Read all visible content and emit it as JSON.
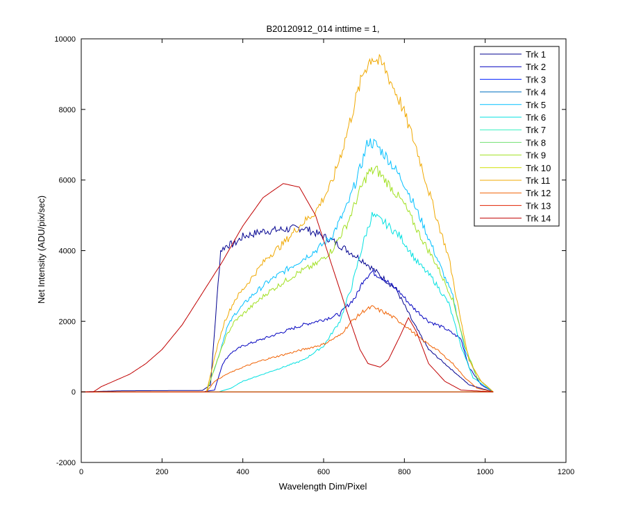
{
  "chart_data": {
    "type": "line",
    "title": "B20120912_014 inttime = 1,",
    "xlabel": "Wavelength Dim/Pixel",
    "ylabel": "Net Intensity (ADU/pix/sec)",
    "xlim": [
      0,
      1200
    ],
    "ylim": [
      -2000,
      10000
    ],
    "xticks": [
      0,
      200,
      400,
      600,
      800,
      1000,
      1200
    ],
    "yticks": [
      -2000,
      0,
      2000,
      4000,
      6000,
      8000,
      10000
    ],
    "grid": false,
    "legend_position": "top-right",
    "series": [
      {
        "name": "Trk 1",
        "color": "#00008f",
        "points": [
          [
            0,
            0
          ],
          [
            100,
            30
          ],
          [
            300,
            40
          ],
          [
            320,
            200
          ],
          [
            345,
            4000
          ],
          [
            360,
            4150
          ],
          [
            380,
            4200
          ],
          [
            400,
            4400
          ],
          [
            450,
            4550
          ],
          [
            500,
            4600
          ],
          [
            550,
            4650
          ],
          [
            580,
            4500
          ],
          [
            620,
            4300
          ],
          [
            660,
            4000
          ],
          [
            700,
            3700
          ],
          [
            740,
            3300
          ],
          [
            780,
            2900
          ],
          [
            820,
            2000
          ],
          [
            860,
            1200
          ],
          [
            900,
            800
          ],
          [
            940,
            400
          ],
          [
            960,
            200
          ],
          [
            990,
            100
          ],
          [
            1020,
            0
          ]
        ]
      },
      {
        "name": "Trk 2",
        "color": "#0000bf",
        "points": [
          [
            0,
            0
          ],
          [
            300,
            0
          ],
          [
            330,
            50
          ],
          [
            350,
            800
          ],
          [
            370,
            1100
          ],
          [
            400,
            1300
          ],
          [
            450,
            1500
          ],
          [
            500,
            1700
          ],
          [
            550,
            1900
          ],
          [
            600,
            2050
          ],
          [
            640,
            2200
          ],
          [
            680,
            2700
          ],
          [
            700,
            3200
          ],
          [
            720,
            3400
          ],
          [
            750,
            3200
          ],
          [
            790,
            2800
          ],
          [
            820,
            2400
          ],
          [
            860,
            2000
          ],
          [
            900,
            1800
          ],
          [
            940,
            1500
          ],
          [
            960,
            700
          ],
          [
            990,
            200
          ],
          [
            1020,
            0
          ]
        ]
      },
      {
        "name": "Trk 3",
        "color": "#0020ff",
        "points": [
          [
            0,
            0
          ],
          [
            1020,
            0
          ]
        ]
      },
      {
        "name": "Trk 4",
        "color": "#0070c0",
        "points": [
          [
            0,
            0
          ],
          [
            1020,
            0
          ]
        ]
      },
      {
        "name": "Trk 5",
        "color": "#00bfff",
        "points": [
          [
            0,
            0
          ],
          [
            310,
            0
          ],
          [
            340,
            1000
          ],
          [
            360,
            1800
          ],
          [
            380,
            2200
          ],
          [
            420,
            2700
          ],
          [
            460,
            3100
          ],
          [
            500,
            3400
          ],
          [
            540,
            3700
          ],
          [
            580,
            4000
          ],
          [
            620,
            4400
          ],
          [
            660,
            5300
          ],
          [
            690,
            6300
          ],
          [
            710,
            7100
          ],
          [
            730,
            7000
          ],
          [
            760,
            6600
          ],
          [
            800,
            5900
          ],
          [
            840,
            4900
          ],
          [
            880,
            3800
          ],
          [
            920,
            2700
          ],
          [
            950,
            1200
          ],
          [
            980,
            400
          ],
          [
            1020,
            0
          ]
        ]
      },
      {
        "name": "Trk 6",
        "color": "#00e0e0",
        "points": [
          [
            0,
            0
          ],
          [
            340,
            0
          ],
          [
            370,
            100
          ],
          [
            400,
            300
          ],
          [
            450,
            500
          ],
          [
            500,
            700
          ],
          [
            550,
            900
          ],
          [
            600,
            1300
          ],
          [
            640,
            2000
          ],
          [
            670,
            3000
          ],
          [
            700,
            4300
          ],
          [
            720,
            5000
          ],
          [
            750,
            4800
          ],
          [
            790,
            4400
          ],
          [
            830,
            3700
          ],
          [
            870,
            3200
          ],
          [
            910,
            2500
          ],
          [
            940,
            1300
          ],
          [
            970,
            400
          ],
          [
            1020,
            0
          ]
        ]
      },
      {
        "name": "Trk 7",
        "color": "#30f0c0",
        "points": [
          [
            0,
            0
          ],
          [
            1020,
            0
          ]
        ]
      },
      {
        "name": "Trk 8",
        "color": "#70e070",
        "points": [
          [
            0,
            0
          ],
          [
            1020,
            0
          ]
        ]
      },
      {
        "name": "Trk 9",
        "color": "#a0e020",
        "points": [
          [
            0,
            0
          ],
          [
            310,
            0
          ],
          [
            340,
            1000
          ],
          [
            360,
            1600
          ],
          [
            380,
            2000
          ],
          [
            420,
            2400
          ],
          [
            460,
            2800
          ],
          [
            500,
            3100
          ],
          [
            540,
            3400
          ],
          [
            580,
            3600
          ],
          [
            620,
            4000
          ],
          [
            660,
            4800
          ],
          [
            690,
            5700
          ],
          [
            710,
            6200
          ],
          [
            730,
            6300
          ],
          [
            760,
            5900
          ],
          [
            800,
            5300
          ],
          [
            840,
            4400
          ],
          [
            880,
            3600
          ],
          [
            920,
            2600
          ],
          [
            950,
            1300
          ],
          [
            980,
            400
          ],
          [
            1020,
            0
          ]
        ]
      },
      {
        "name": "Trk 10",
        "color": "#d0e000",
        "points": [
          [
            0,
            0
          ],
          [
            1020,
            0
          ]
        ]
      },
      {
        "name": "Trk 11",
        "color": "#f0a800",
        "points": [
          [
            0,
            0
          ],
          [
            310,
            0
          ],
          [
            335,
            1200
          ],
          [
            355,
            2000
          ],
          [
            380,
            2600
          ],
          [
            420,
            3200
          ],
          [
            460,
            3800
          ],
          [
            500,
            4200
          ],
          [
            540,
            4700
          ],
          [
            580,
            5100
          ],
          [
            620,
            5900
          ],
          [
            650,
            7000
          ],
          [
            680,
            8300
          ],
          [
            700,
            9100
          ],
          [
            720,
            9500
          ],
          [
            750,
            9200
          ],
          [
            790,
            8200
          ],
          [
            830,
            6900
          ],
          [
            870,
            5300
          ],
          [
            910,
            3800
          ],
          [
            940,
            2000
          ],
          [
            960,
            900
          ],
          [
            990,
            300
          ],
          [
            1020,
            0
          ]
        ]
      },
      {
        "name": "Trk 12",
        "color": "#f06000",
        "points": [
          [
            0,
            0
          ],
          [
            310,
            0
          ],
          [
            330,
            300
          ],
          [
            360,
            500
          ],
          [
            400,
            700
          ],
          [
            450,
            900
          ],
          [
            500,
            1050
          ],
          [
            550,
            1200
          ],
          [
            600,
            1350
          ],
          [
            640,
            1600
          ],
          [
            670,
            2000
          ],
          [
            700,
            2300
          ],
          [
            720,
            2400
          ],
          [
            760,
            2200
          ],
          [
            800,
            1900
          ],
          [
            840,
            1500
          ],
          [
            880,
            1200
          ],
          [
            920,
            800
          ],
          [
            950,
            400
          ],
          [
            980,
            100
          ],
          [
            1020,
            0
          ]
        ]
      },
      {
        "name": "Trk 13",
        "color": "#e02000",
        "points": [
          [
            0,
            0
          ],
          [
            1020,
            0
          ]
        ]
      },
      {
        "name": "Trk 14",
        "color": "#c00000",
        "points": [
          [
            0,
            0
          ],
          [
            30,
            0
          ],
          [
            50,
            150
          ],
          [
            80,
            300
          ],
          [
            120,
            500
          ],
          [
            160,
            800
          ],
          [
            200,
            1200
          ],
          [
            250,
            1900
          ],
          [
            300,
            2800
          ],
          [
            350,
            3700
          ],
          [
            400,
            4700
          ],
          [
            450,
            5500
          ],
          [
            500,
            5900
          ],
          [
            540,
            5800
          ],
          [
            580,
            5000
          ],
          [
            620,
            3600
          ],
          [
            660,
            2200
          ],
          [
            690,
            1200
          ],
          [
            710,
            800
          ],
          [
            740,
            700
          ],
          [
            760,
            900
          ],
          [
            790,
            1600
          ],
          [
            810,
            2100
          ],
          [
            830,
            1700
          ],
          [
            860,
            800
          ],
          [
            900,
            300
          ],
          [
            940,
            50
          ],
          [
            1020,
            0
          ]
        ]
      }
    ]
  }
}
